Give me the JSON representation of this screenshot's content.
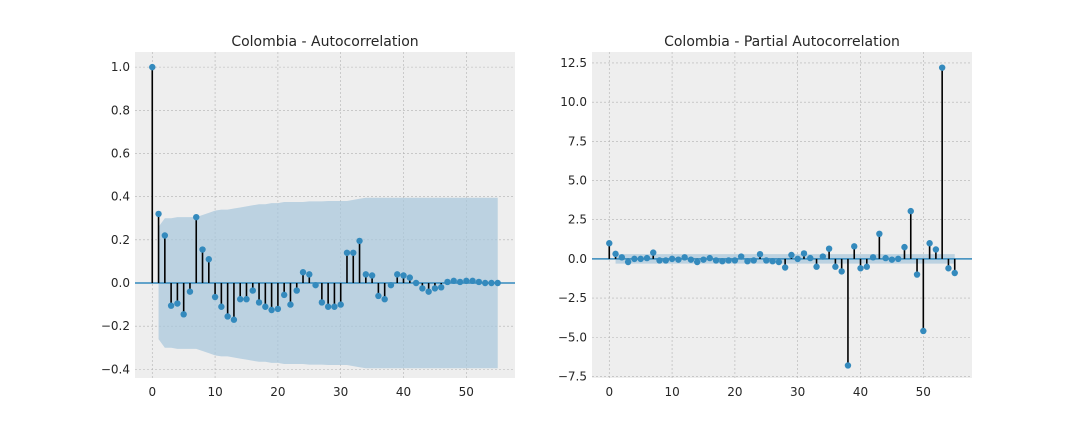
{
  "colors": {
    "background": "#ffffff",
    "axes_face": "#eeeeee",
    "grid": "#b2b2b2",
    "stem": "#000000",
    "marker": "#348abd",
    "zero_line": "#348abd",
    "confint_fill": "#a6c6dc"
  },
  "chart_data": [
    {
      "type": "stem",
      "title": "Colombia - Autocorrelation",
      "xlabel": "",
      "ylabel": "",
      "xlim": [
        -2.75,
        57.75
      ],
      "ylim": [
        -0.44,
        1.07
      ],
      "xticks": [
        0,
        10,
        20,
        30,
        40,
        50
      ],
      "yticks": [
        -0.4,
        -0.2,
        0.0,
        0.2,
        0.4,
        0.6,
        0.8,
        1.0
      ],
      "ytick_labels": [
        "−0.4",
        "−0.2",
        "0.0",
        "0.2",
        "0.4",
        "0.6",
        "0.8",
        "1.0"
      ],
      "grid": true,
      "lags": [
        0,
        1,
        2,
        3,
        4,
        5,
        6,
        7,
        8,
        9,
        10,
        11,
        12,
        13,
        14,
        15,
        16,
        17,
        18,
        19,
        20,
        21,
        22,
        23,
        24,
        25,
        26,
        27,
        28,
        29,
        30,
        31,
        32,
        33,
        34,
        35,
        36,
        37,
        38,
        39,
        40,
        41,
        42,
        43,
        44,
        45,
        46,
        47,
        48,
        49,
        50,
        51,
        52,
        53,
        54,
        55
      ],
      "values": [
        1.0,
        0.32,
        0.22,
        -0.105,
        -0.095,
        -0.145,
        -0.04,
        0.305,
        0.155,
        0.11,
        -0.065,
        -0.11,
        -0.155,
        -0.17,
        -0.075,
        -0.075,
        -0.035,
        -0.09,
        -0.11,
        -0.125,
        -0.12,
        -0.055,
        -0.1,
        -0.035,
        0.05,
        0.04,
        -0.01,
        -0.09,
        -0.11,
        -0.11,
        -0.1,
        0.14,
        0.14,
        0.195,
        0.04,
        0.035,
        -0.06,
        -0.075,
        -0.01,
        0.04,
        0.035,
        0.025,
        0.0,
        -0.025,
        -0.04,
        -0.025,
        -0.02,
        0.005,
        0.01,
        0.005,
        0.01,
        0.01,
        0.005,
        0.0,
        0.0,
        0.0
      ],
      "confint_upper": [
        0.0,
        0.0,
        0.3,
        0.3,
        0.305,
        0.305,
        0.305,
        0.305,
        0.315,
        0.325,
        0.335,
        0.34,
        0.34,
        0.345,
        0.35,
        0.355,
        0.36,
        0.365,
        0.365,
        0.37,
        0.37,
        0.375,
        0.375,
        0.375,
        0.375,
        0.378,
        0.378,
        0.378,
        0.38,
        0.38,
        0.38,
        0.38,
        0.385,
        0.39,
        0.395,
        0.395,
        0.395,
        0.395,
        0.395,
        0.395,
        0.395,
        0.395,
        0.395,
        0.395,
        0.395,
        0.395,
        0.395,
        0.395,
        0.395,
        0.395,
        0.395,
        0.395,
        0.395,
        0.395,
        0.395,
        0.395
      ],
      "confint_lower": [
        0.0,
        0.0,
        -0.3,
        -0.3,
        -0.305,
        -0.305,
        -0.305,
        -0.305,
        -0.315,
        -0.325,
        -0.335,
        -0.34,
        -0.34,
        -0.345,
        -0.35,
        -0.355,
        -0.36,
        -0.365,
        -0.365,
        -0.37,
        -0.37,
        -0.375,
        -0.375,
        -0.375,
        -0.375,
        -0.378,
        -0.378,
        -0.378,
        -0.38,
        -0.38,
        -0.38,
        -0.38,
        -0.385,
        -0.39,
        -0.395,
        -0.395,
        -0.395,
        -0.395,
        -0.395,
        -0.395,
        -0.395,
        -0.395,
        -0.395,
        -0.395,
        -0.395,
        -0.395,
        -0.395,
        -0.395,
        -0.395,
        -0.395,
        -0.395,
        -0.395,
        -0.395,
        -0.395,
        -0.395,
        -0.395
      ],
      "confint_start": 1,
      "confint_edge_at_first_lag": 0.26
    },
    {
      "type": "stem",
      "title": "Colombia - Partial Autocorrelation",
      "xlabel": "",
      "ylabel": "",
      "xlim": [
        -2.75,
        57.75
      ],
      "ylim": [
        -7.6,
        13.2
      ],
      "xticks": [
        0,
        10,
        20,
        30,
        40,
        50
      ],
      "yticks": [
        -7.5,
        -5.0,
        -2.5,
        0.0,
        2.5,
        5.0,
        7.5,
        10.0,
        12.5
      ],
      "ytick_labels": [
        "−7.5",
        "−5.0",
        "−2.5",
        "0.0",
        "2.5",
        "5.0",
        "7.5",
        "10.0",
        "12.5"
      ],
      "grid": true,
      "lags": [
        0,
        1,
        2,
        3,
        4,
        5,
        6,
        7,
        8,
        9,
        10,
        11,
        12,
        13,
        14,
        15,
        16,
        17,
        18,
        19,
        20,
        21,
        22,
        23,
        24,
        25,
        26,
        27,
        28,
        29,
        30,
        31,
        32,
        33,
        34,
        35,
        36,
        37,
        38,
        39,
        40,
        41,
        42,
        43,
        44,
        45,
        46,
        47,
        48,
        49,
        50,
        51,
        52,
        53,
        54,
        55
      ],
      "values": [
        1.0,
        0.32,
        0.1,
        -0.2,
        0.0,
        0.0,
        0.05,
        0.4,
        -0.1,
        -0.1,
        0.0,
        -0.05,
        0.1,
        -0.05,
        -0.2,
        -0.05,
        0.05,
        -0.1,
        -0.15,
        -0.1,
        -0.1,
        0.15,
        -0.15,
        -0.1,
        0.3,
        -0.1,
        -0.15,
        -0.2,
        -0.55,
        0.25,
        0.0,
        0.35,
        0.05,
        -0.5,
        0.15,
        0.65,
        -0.5,
        -0.8,
        -6.8,
        0.8,
        -0.6,
        -0.5,
        0.1,
        1.6,
        0.05,
        -0.05,
        0.0,
        0.75,
        3.05,
        -1.0,
        -4.6,
        1.0,
        0.6,
        12.2,
        -0.6,
        -0.9
      ],
      "confint_half_width": 0.3,
      "confint_start": 1
    }
  ]
}
